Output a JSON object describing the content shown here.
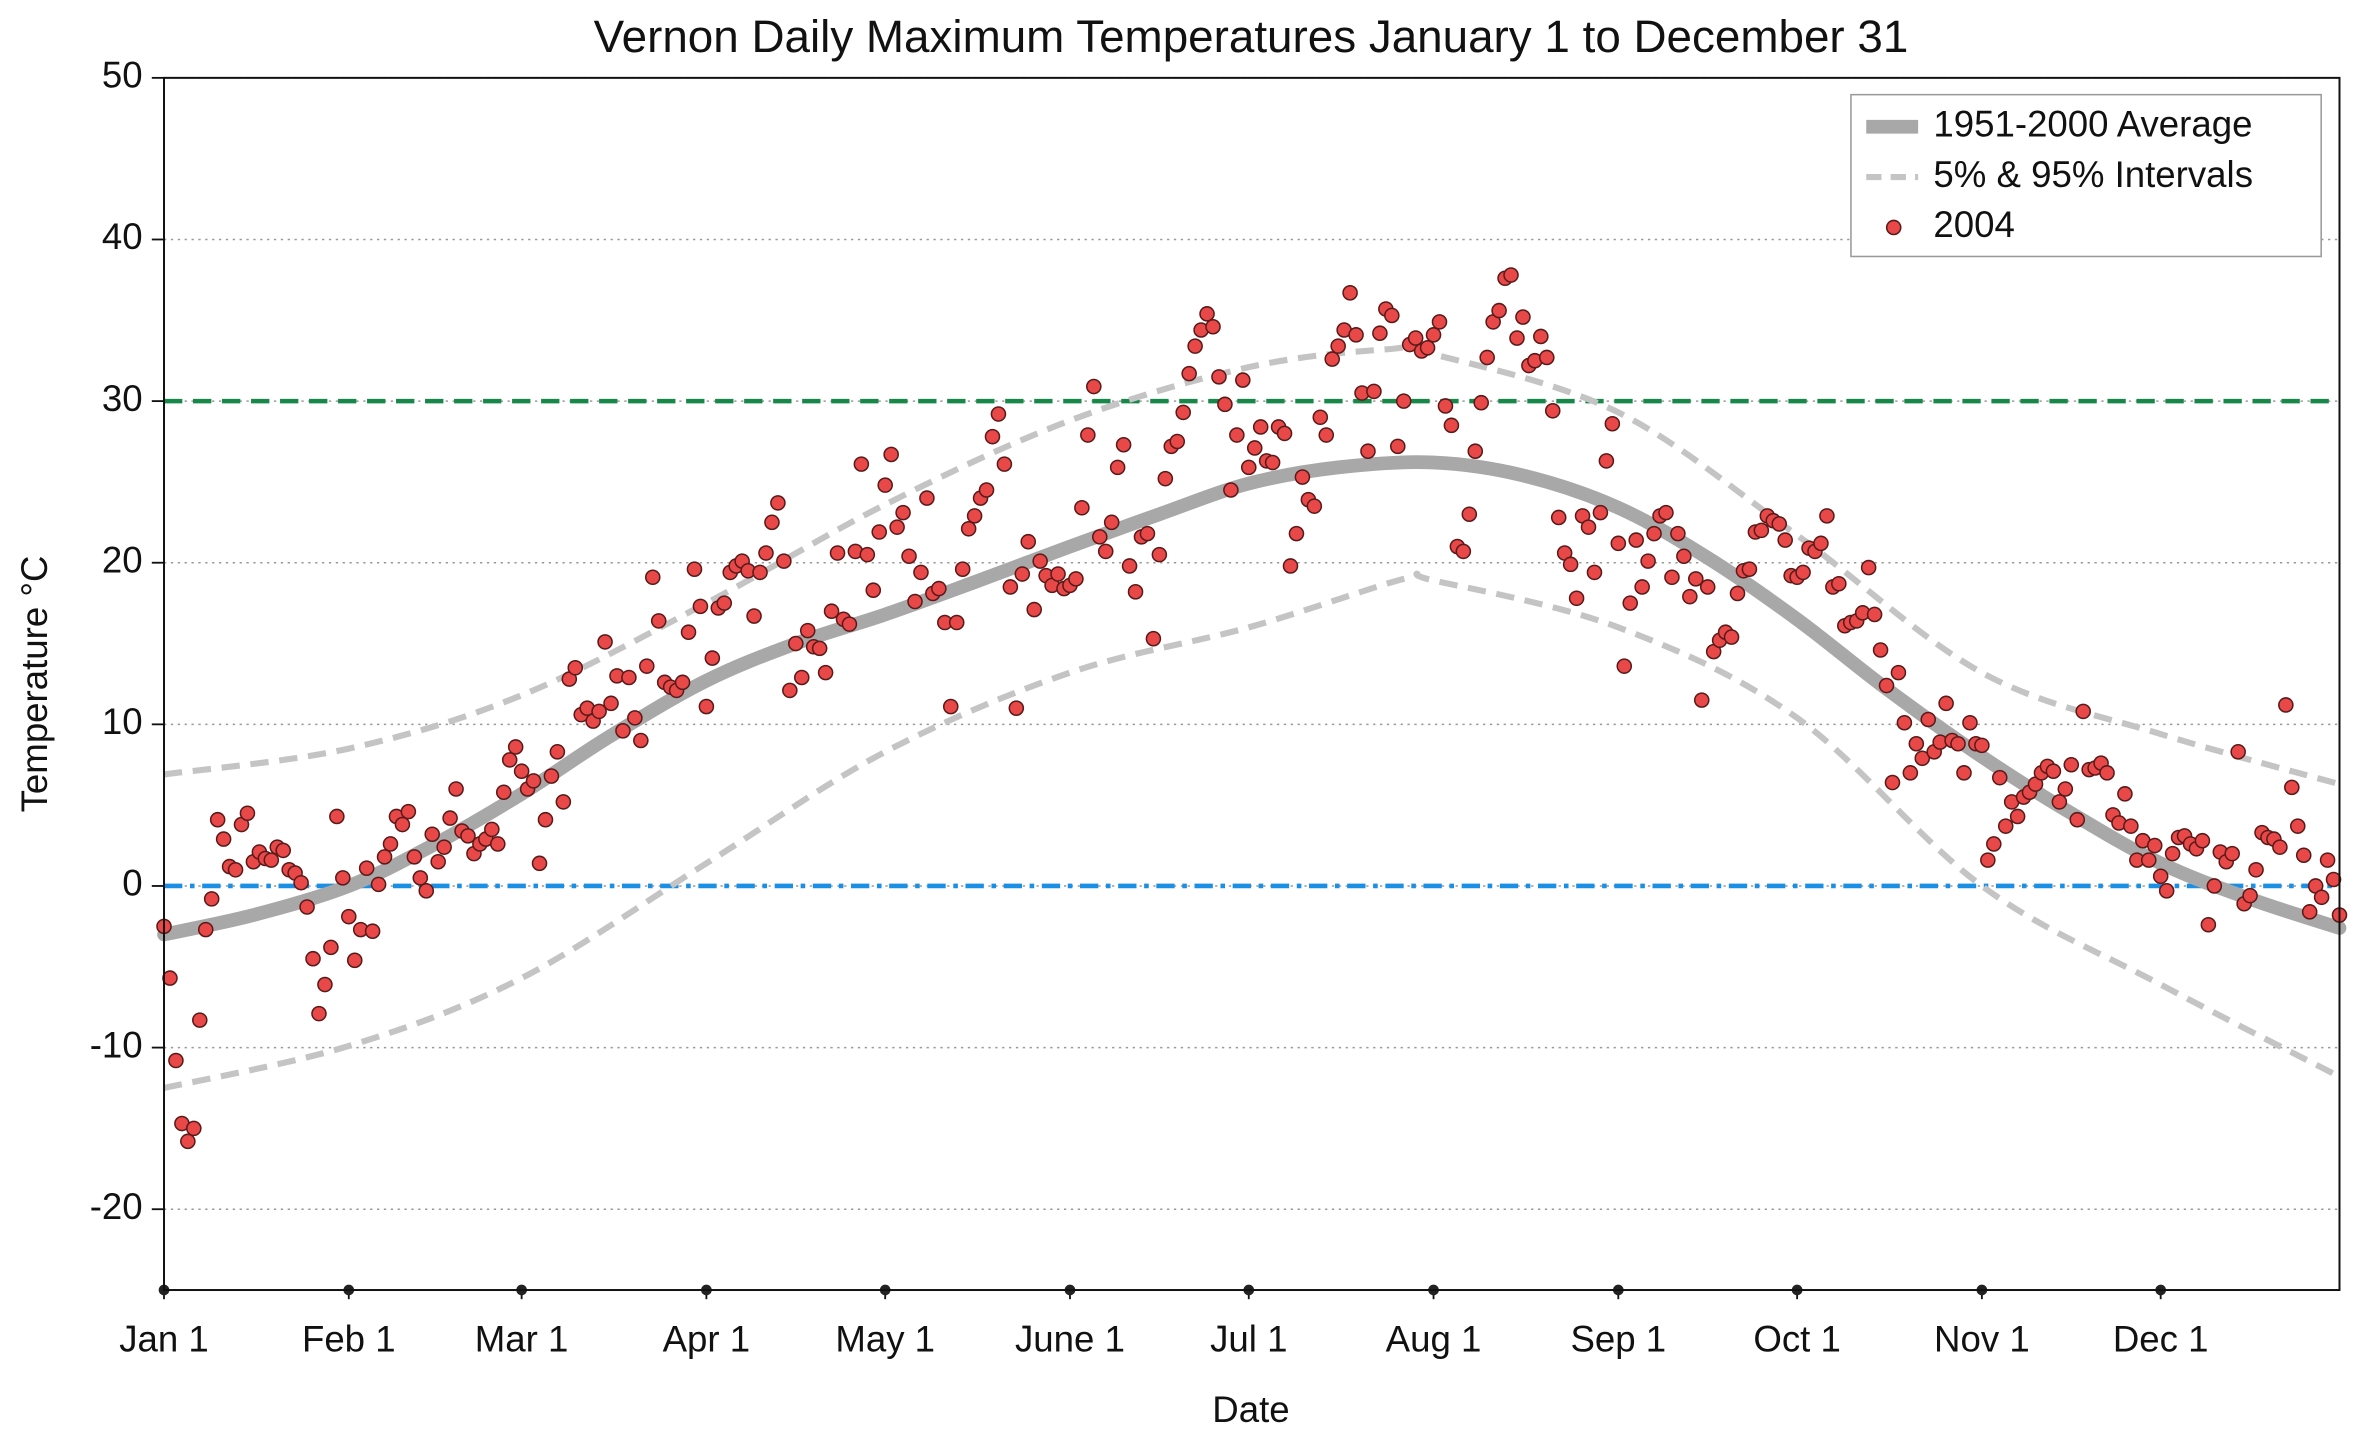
{
  "chart_data": {
    "type": "scatter",
    "title": "Vernon Daily Maximum Temperatures January 1 to December 31",
    "xlabel": "Date",
    "ylabel": "Temperature °C",
    "xlim": [
      0,
      365
    ],
    "ylim": [
      -25,
      50
    ],
    "yticks": [
      -20,
      -10,
      0,
      10,
      20,
      30,
      40,
      50
    ],
    "xticks": [
      {
        "value": 0,
        "label": "Jan 1"
      },
      {
        "value": 31,
        "label": "Feb 1"
      },
      {
        "value": 60,
        "label": "Mar 1"
      },
      {
        "value": 91,
        "label": "Apr 1"
      },
      {
        "value": 121,
        "label": "May 1"
      },
      {
        "value": 152,
        "label": "June 1"
      },
      {
        "value": 182,
        "label": "Jul 1"
      },
      {
        "value": 213,
        "label": "Aug 1"
      },
      {
        "value": 244,
        "label": "Sep 1"
      },
      {
        "value": 274,
        "label": "Oct 1"
      },
      {
        "value": 305,
        "label": "Nov 1"
      },
      {
        "value": 335,
        "label": "Dec 1"
      }
    ],
    "grid": true,
    "legend": "upper right",
    "hlines": [
      {
        "value": 30,
        "color": "#17874a",
        "style": "dashed"
      },
      {
        "value": 0,
        "color": "#1a8fe3",
        "style": "dashdot"
      }
    ],
    "series": [
      {
        "name": "1951-2000 Average",
        "mark": "line",
        "style": "solid",
        "color": "#a8a8a8",
        "x": [
          0,
          15,
          31,
          45,
          60,
          75,
          91,
          106,
          121,
          136,
          152,
          167,
          182,
          197,
          213,
          228,
          244,
          259,
          274,
          289,
          305,
          320,
          335,
          350,
          365
        ],
        "values": [
          -3.0,
          -1.8,
          0,
          2.5,
          5.7,
          9.3,
          12.7,
          15.0,
          16.8,
          18.8,
          21.0,
          23.0,
          24.9,
          25.9,
          26.2,
          25.4,
          23.4,
          20.3,
          16.5,
          12.2,
          8.0,
          4.5,
          1.4,
          -0.8,
          -2.6
        ]
      },
      {
        "name": "5% & 95% Intervals",
        "mark": "line",
        "style": "dashed",
        "color": "#c4c4c4",
        "lines": [
          {
            "x": [
              0,
              31,
              60,
              91,
              121,
              152,
              182,
              205,
              213,
              244,
              274,
              305,
              335,
              365
            ],
            "values": [
              6.9,
              8.5,
              11.8,
              17.5,
              23.6,
              28.8,
              32.1,
              33.2,
              32.9,
              29.3,
              21.7,
              13.2,
              9.4,
              6.3
            ]
          },
          {
            "x": [
              0,
              31,
              60,
              91,
              121,
              152,
              182,
              208,
              213,
              244,
              274,
              305,
              335,
              365
            ],
            "values": [
              -12.5,
              -9.9,
              -5.7,
              1.4,
              8.3,
              13.2,
              16.0,
              19.0,
              18.9,
              16.0,
              10.4,
              0.0,
              -6.1,
              -11.8
            ]
          }
        ]
      },
      {
        "name": "2004",
        "mark": "points",
        "color": "#e84848",
        "x": [
          0,
          1,
          2,
          3,
          4,
          5,
          6,
          7,
          8,
          9,
          10,
          11,
          12,
          13,
          14,
          15,
          16,
          17,
          18,
          19,
          20,
          21,
          22,
          23,
          24,
          25,
          26,
          27,
          28,
          29,
          30,
          31,
          32,
          33,
          34,
          35,
          36,
          37,
          38,
          39,
          40,
          41,
          42,
          43,
          44,
          45,
          46,
          47,
          48,
          49,
          50,
          51,
          52,
          53,
          54,
          55,
          56,
          57,
          58,
          59,
          60,
          61,
          62,
          63,
          64,
          65,
          66,
          67,
          68,
          69,
          70,
          71,
          72,
          73,
          74,
          75,
          76,
          77,
          78,
          79,
          80,
          81,
          82,
          83,
          84,
          85,
          86,
          87,
          88,
          89,
          90,
          91,
          92,
          93,
          94,
          95,
          96,
          97,
          98,
          99,
          100,
          101,
          102,
          103,
          104,
          105,
          106,
          107,
          108,
          109,
          110,
          111,
          112,
          113,
          114,
          115,
          116,
          117,
          118,
          119,
          120,
          121,
          122,
          123,
          124,
          125,
          126,
          127,
          128,
          129,
          130,
          131,
          132,
          133,
          134,
          135,
          136,
          137,
          138,
          139,
          140,
          141,
          142,
          143,
          144,
          145,
          146,
          147,
          148,
          149,
          150,
          151,
          152,
          153,
          154,
          155,
          156,
          157,
          158,
          159,
          160,
          161,
          162,
          163,
          164,
          165,
          166,
          167,
          168,
          169,
          170,
          171,
          172,
          173,
          174,
          175,
          176,
          177,
          178,
          179,
          180,
          181,
          182,
          183,
          184,
          185,
          186,
          187,
          188,
          189,
          190,
          191,
          192,
          193,
          194,
          195,
          196,
          197,
          198,
          199,
          200,
          201,
          202,
          203,
          204,
          205,
          206,
          207,
          208,
          209,
          210,
          211,
          212,
          213,
          214,
          215,
          216,
          217,
          218,
          219,
          220,
          221,
          222,
          223,
          224,
          225,
          226,
          227,
          228,
          229,
          230,
          231,
          232,
          233,
          234,
          235,
          236,
          237,
          238,
          239,
          240,
          241,
          242,
          243,
          244,
          245,
          246,
          247,
          248,
          249,
          250,
          251,
          252,
          253,
          254,
          255,
          256,
          257,
          258,
          259,
          260,
          261,
          262,
          263,
          264,
          265,
          266,
          267,
          268,
          269,
          270,
          271,
          272,
          273,
          274,
          275,
          276,
          277,
          278,
          279,
          280,
          281,
          282,
          283,
          284,
          285,
          286,
          287,
          288,
          289,
          290,
          291,
          292,
          293,
          294,
          295,
          296,
          297,
          298,
          299,
          300,
          301,
          302,
          303,
          304,
          305,
          306,
          307,
          308,
          309,
          310,
          311,
          312,
          313,
          314,
          315,
          316,
          317,
          318,
          319,
          320,
          321,
          322,
          323,
          324,
          325,
          326,
          327,
          328,
          329,
          330,
          331,
          332,
          333,
          334,
          335,
          336,
          337,
          338,
          339,
          340,
          341,
          342,
          343,
          344,
          345,
          346,
          347,
          348,
          349,
          350,
          351,
          352,
          353,
          354,
          355,
          356,
          357,
          358,
          359,
          360,
          361,
          362,
          363,
          364,
          365
        ],
        "values": [
          -2.5,
          -5.7,
          -10.8,
          -14.7,
          -15.8,
          -15,
          -8.3,
          -2.7,
          -0.8,
          4.1,
          2.9,
          1.2,
          1.0,
          3.8,
          4.5,
          1.5,
          2.1,
          1.7,
          1.6,
          2.4,
          2.2,
          1.0,
          0.8,
          0.2,
          -1.3,
          -4.5,
          -7.9,
          -6.1,
          -3.8,
          4.3,
          0.5,
          -1.9,
          -4.6,
          -2.7,
          1.1,
          -2.8,
          0.1,
          1.8,
          2.6,
          4.3,
          3.8,
          4.6,
          1.8,
          0.5,
          -0.3,
          3.2,
          1.5,
          2.4,
          4.2,
          6.0,
          3.4,
          3.1,
          2.0,
          2.6,
          2.9,
          3.5,
          2.6,
          5.8,
          7.8,
          8.6,
          7.1,
          6.0,
          6.5,
          1.4,
          4.1,
          6.8,
          8.3,
          5.2,
          12.8,
          13.5,
          10.6,
          11.0,
          10.2,
          10.8,
          15.1,
          11.3,
          13.0,
          9.6,
          12.9,
          10.4,
          9.0,
          13.6,
          19.1,
          16.4,
          12.6,
          12.3,
          12.1,
          12.6,
          15.7,
          19.6,
          17.3,
          11.1,
          14.1,
          17.2,
          17.5,
          19.4,
          19.8,
          20.1,
          19.5,
          16.7,
          19.4,
          20.6,
          22.5,
          23.7,
          20.1,
          12.1,
          15.0,
          12.9,
          15.8,
          14.8,
          14.7,
          13.2,
          17.0,
          20.6,
          16.5,
          16.2,
          20.7,
          26.1,
          20.5,
          18.3,
          21.9,
          24.8,
          26.7,
          22.2,
          23.1,
          20.4,
          17.6,
          19.4,
          24.0,
          18.1,
          18.4,
          16.3,
          11.1,
          16.3,
          19.6,
          22.1,
          22.9,
          24.0,
          24.5,
          27.8,
          29.2,
          26.1,
          18.5,
          11.0,
          19.3,
          21.3,
          17.1,
          20.1,
          19.2,
          18.6,
          19.3,
          18.4,
          18.6,
          19.0,
          23.4,
          27.9,
          30.9,
          21.6,
          20.7,
          22.5,
          25.9,
          27.3,
          19.8,
          18.2,
          21.6,
          21.8,
          15.3,
          20.5,
          25.2,
          27.2,
          27.5,
          29.3,
          31.7,
          33.4,
          34.4,
          35.4,
          34.6,
          31.5,
          29.8,
          24.5,
          27.9,
          31.3,
          25.9,
          27.1,
          28.4,
          26.3,
          26.2,
          28.4,
          28.0,
          19.8,
          21.8,
          25.3,
          23.9,
          23.5,
          29.0,
          27.9,
          32.6,
          33.4,
          34.4,
          36.7,
          34.1,
          30.5,
          26.9,
          30.6,
          34.2,
          35.7,
          35.3,
          27.2,
          30.0,
          33.5,
          33.9,
          33.1,
          33.3,
          34.1,
          34.9,
          29.7,
          28.5,
          21.0,
          20.7,
          23.0,
          26.9,
          29.9,
          32.7,
          34.9,
          35.6,
          37.6,
          37.8,
          33.9,
          35.2,
          32.2,
          32.5,
          34.0,
          32.7,
          29.4,
          22.8,
          20.6,
          19.9,
          17.8,
          22.9,
          22.2,
          19.4,
          23.1,
          26.3,
          28.6,
          21.2,
          13.6,
          17.5,
          21.4,
          18.5,
          20.1,
          21.8,
          22.9,
          23.1,
          19.1,
          21.8,
          20.4,
          17.9,
          19.0,
          11.5,
          18.5,
          14.5,
          15.2,
          15.7,
          15.4,
          18.1,
          19.5,
          19.6,
          21.9,
          22.0,
          22.9,
          22.6,
          22.4,
          21.4,
          19.2,
          19.1,
          19.4,
          20.9,
          20.7,
          21.2,
          22.9,
          18.5,
          18.7,
          16.1,
          16.3,
          16.4,
          16.9,
          19.7,
          16.8,
          14.6,
          12.4,
          6.4,
          13.2,
          10.1,
          7.0,
          8.8,
          7.9,
          10.3,
          8.3,
          8.9,
          11.3,
          9.0,
          8.8,
          7.0,
          10.1,
          8.8,
          8.7,
          1.6,
          2.6,
          6.7,
          3.7,
          5.2,
          4.3,
          5.5,
          5.8,
          6.3,
          7.0,
          7.4,
          7.1,
          5.2,
          6.0,
          7.5,
          4.1,
          10.8,
          7.2,
          7.3,
          7.6,
          7.0,
          4.4,
          3.9,
          5.7,
          3.7,
          1.6,
          2.8,
          1.6,
          2.5,
          0.6,
          -0.3,
          2.0,
          3.0,
          3.1,
          2.6,
          2.3,
          2.8,
          -2.4,
          0.0,
          2.1,
          1.5,
          2.0,
          8.3,
          -1.1,
          -0.6,
          1.0,
          3.3,
          3.0,
          2.9,
          2.4,
          11.2,
          6.1,
          3.7,
          1.9,
          -1.6,
          0.0,
          -0.7,
          1.6,
          0.4,
          -1.8
        ]
      }
    ]
  }
}
